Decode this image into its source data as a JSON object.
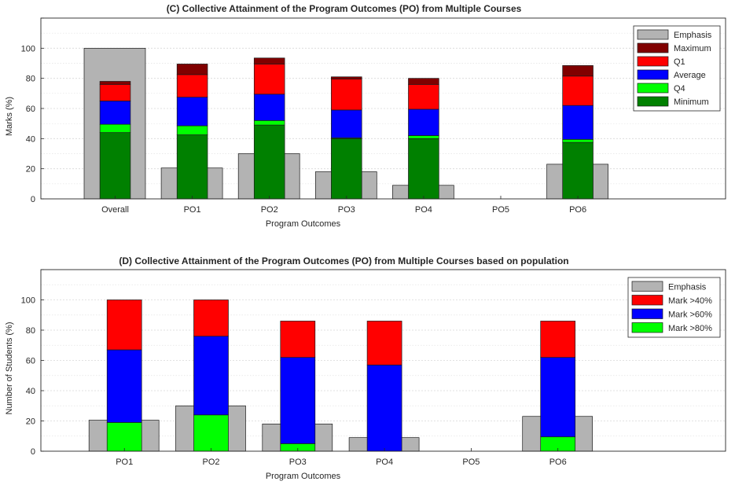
{
  "chart_data": [
    {
      "type": "bar",
      "title": "(C) Collective Attainment of the Program Outcomes (PO) from Multiple Courses",
      "xlabel": "Program Outcomes",
      "ylabel": "Marks (%)",
      "ylim": [
        0,
        120
      ],
      "yticks": [
        0,
        20,
        40,
        60,
        80,
        100
      ],
      "grid": true,
      "legend_position": "top-right",
      "categories": [
        "Overall",
        "PO1",
        "PO2",
        "PO3",
        "PO4",
        "PO5",
        "PO6"
      ],
      "legend": [
        "Emphasis",
        "Maximum",
        "Q1",
        "Average",
        "Q4",
        "Minimum"
      ],
      "colors": {
        "Emphasis": "#b3b3b3",
        "Maximum": "#800000",
        "Q1": "#ff0000",
        "Average": "#0000ff",
        "Q4": "#00ff00",
        "Minimum": "#008000"
      },
      "emphasis": [
        100,
        20.5,
        30,
        18,
        9,
        0,
        23
      ],
      "series": [
        {
          "name": "Minimum",
          "values": [
            44,
            42.5,
            49,
            40,
            40,
            null,
            37.5
          ]
        },
        {
          "name": "Q4",
          "values": [
            49.5,
            48.5,
            52,
            40.5,
            42,
            null,
            39.5
          ]
        },
        {
          "name": "Average",
          "values": [
            65,
            67.5,
            69.5,
            59,
            59.5,
            null,
            62
          ]
        },
        {
          "name": "Q1",
          "values": [
            76,
            82.5,
            89.5,
            79.5,
            76,
            null,
            81.5
          ]
        },
        {
          "name": "Maximum",
          "values": [
            78,
            89.5,
            93.5,
            81,
            80,
            null,
            88.5
          ]
        }
      ]
    },
    {
      "type": "bar",
      "title": "(D) Collective Attainment of the Program Outcomes (PO) from Multiple Courses based on population",
      "xlabel": "Program Outcomes",
      "ylabel": "Number of Students (%)",
      "ylim": [
        0,
        120
      ],
      "yticks": [
        0,
        20,
        40,
        60,
        80,
        100
      ],
      "grid": true,
      "legend_position": "top-right",
      "categories": [
        "PO1",
        "PO2",
        "PO3",
        "PO4",
        "PO5",
        "PO6"
      ],
      "legend": [
        "Emphasis",
        "Mark >40%",
        "Mark >60%",
        "Mark >80%"
      ],
      "colors": {
        "Emphasis": "#b3b3b3",
        "Mark >40%": "#ff0000",
        "Mark >60%": "#0000ff",
        "Mark >80%": "#00ff00"
      },
      "emphasis": [
        20.5,
        30,
        18,
        9,
        0,
        23
      ],
      "series": [
        {
          "name": "Mark >80%",
          "values": [
            19,
            24,
            5,
            0,
            null,
            9.5
          ]
        },
        {
          "name": "Mark >60%",
          "values": [
            67,
            76,
            62,
            57,
            null,
            62
          ]
        },
        {
          "name": "Mark >40%",
          "values": [
            100,
            100,
            86,
            86,
            null,
            86
          ]
        }
      ]
    }
  ]
}
